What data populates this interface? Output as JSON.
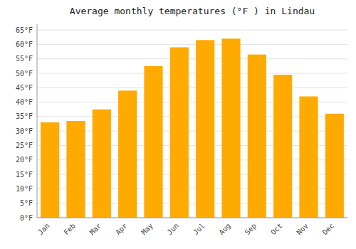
{
  "chart_data": {
    "type": "bar",
    "title": "Average monthly temperatures (°F ) in Lindau",
    "categories": [
      "Jan",
      "Feb",
      "Mar",
      "Apr",
      "May",
      "Jun",
      "Jul",
      "Aug",
      "Sep",
      "Oct",
      "Nov",
      "Dec"
    ],
    "values": [
      33,
      33.5,
      37.5,
      44,
      52.5,
      59,
      61.5,
      62,
      56.5,
      49.5,
      42,
      36
    ],
    "color": "#FFAA00",
    "ylim": [
      0,
      67
    ],
    "yticks": [
      {
        "value": 0,
        "label": "0°F"
      },
      {
        "value": 5,
        "label": "5°F"
      },
      {
        "value": 10,
        "label": "10°F"
      },
      {
        "value": 15,
        "label": "15°F"
      },
      {
        "value": 20,
        "label": "20°F"
      },
      {
        "value": 25,
        "label": "25°F"
      },
      {
        "value": 30,
        "label": "30°F"
      },
      {
        "value": 35,
        "label": "35°F"
      },
      {
        "value": 40,
        "label": "40°F"
      },
      {
        "value": 45,
        "label": "45°F"
      },
      {
        "value": 50,
        "label": "50°F"
      },
      {
        "value": 55,
        "label": "55°F"
      },
      {
        "value": 60,
        "label": "60°F"
      },
      {
        "value": 65,
        "label": "65°F"
      }
    ],
    "grid": true
  }
}
